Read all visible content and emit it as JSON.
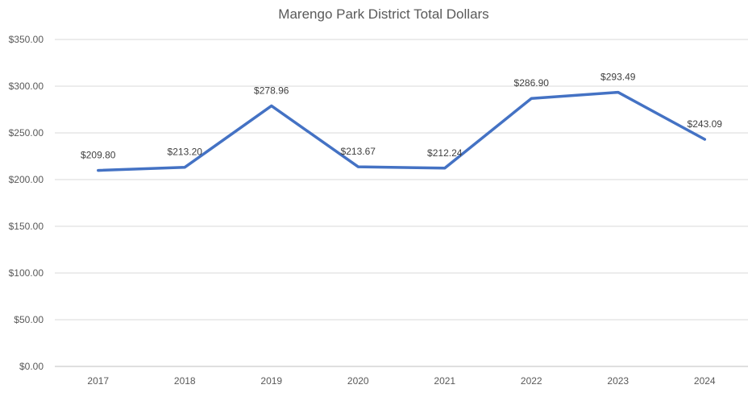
{
  "chart_data": {
    "type": "line",
    "title": "Marengo Park District Total Dollars",
    "xlabel": "",
    "ylabel": "",
    "categories": [
      "2017",
      "2018",
      "2019",
      "2020",
      "2021",
      "2022",
      "2023",
      "2024"
    ],
    "series": [
      {
        "name": "Total Dollars",
        "values": [
          209.8,
          213.2,
          278.96,
          213.67,
          212.24,
          286.9,
          293.49,
          243.09
        ],
        "labels": [
          "$209.80",
          "$213.20",
          "$278.96",
          "$213.67",
          "$212.24",
          "$286.90",
          "$293.49",
          "$243.09"
        ],
        "color": "#4472c4"
      }
    ],
    "ylim": [
      0,
      350
    ],
    "yticks": [
      0,
      50,
      100,
      150,
      200,
      250,
      300,
      350
    ],
    "ytick_labels": [
      "$0.00",
      "$50.00",
      "$100.00",
      "$150.00",
      "$200.00",
      "$250.00",
      "$300.00",
      "$350.00"
    ],
    "grid": true,
    "legend": "none"
  }
}
